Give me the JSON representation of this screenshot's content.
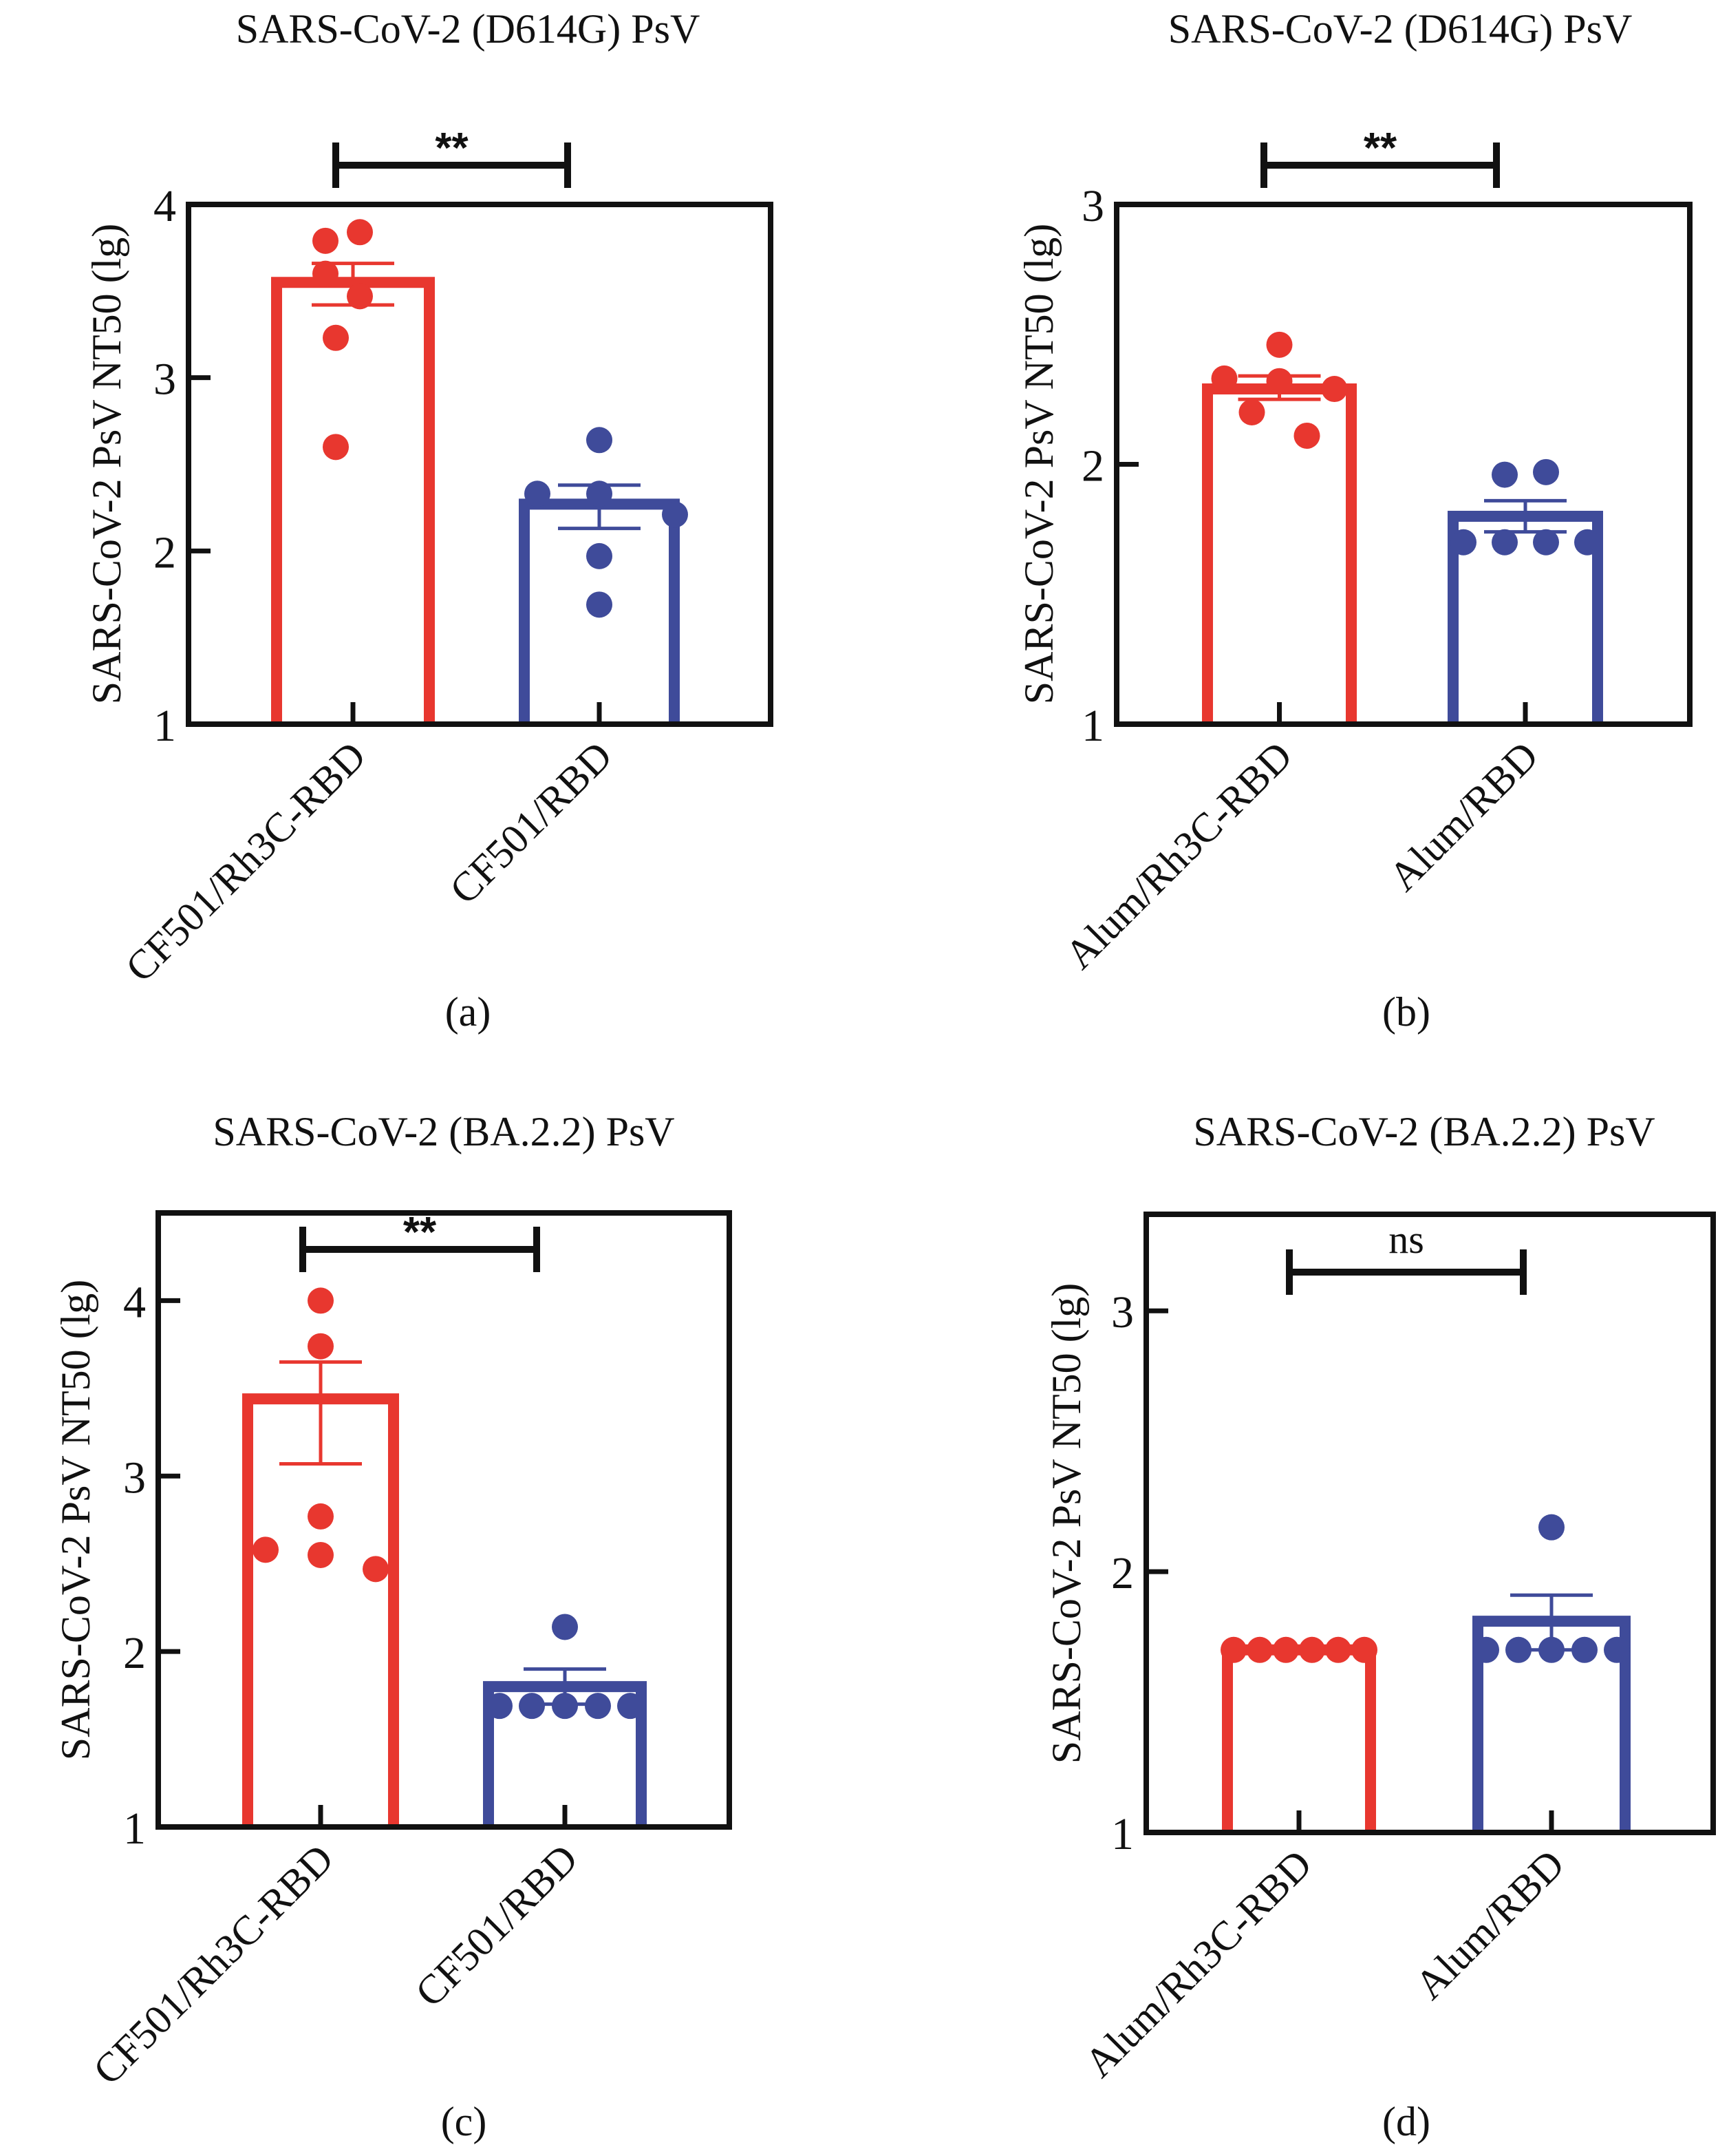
{
  "colors": {
    "group1": "#E8372F",
    "group2": "#3F4B9A",
    "axis": "#111111"
  },
  "chart_data": [
    {
      "id": "a",
      "type": "bar",
      "caption": "(a)",
      "title": "SARS-CoV-2 (D614G) PsV",
      "xlabel": "",
      "ylabel": "SARS-CoV-2 PsV NT50 (lg)",
      "ylim": [
        1,
        4
      ],
      "yticks": [
        1,
        2,
        3,
        4
      ],
      "ytick_labels": [
        "1",
        "2",
        "3",
        "4"
      ],
      "grid": false,
      "categories": [
        "CF501/Rh3C-RBD",
        "CF501/RBD"
      ],
      "series": [
        {
          "name": "CF501/Rh3C-RBD",
          "color_key": "group1",
          "mean": 3.55,
          "sem_upper": 3.66,
          "sem_lower": 3.42,
          "points": [
            3.79,
            3.84,
            3.6,
            3.47,
            3.23,
            2.6
          ]
        },
        {
          "name": "CF501/RBD",
          "color_key": "group2",
          "mean": 2.27,
          "sem_upper": 2.38,
          "sem_lower": 2.13,
          "points": [
            2.33,
            2.64,
            2.33,
            2.21,
            1.97,
            1.69
          ]
        }
      ],
      "significance": {
        "label": "**",
        "between": [
          "CF501/Rh3C-RBD",
          "CF501/RBD"
        ]
      }
    },
    {
      "id": "b",
      "type": "bar",
      "caption": "(b)",
      "title": "SARS-CoV-2 (D614G) PsV",
      "xlabel": "",
      "ylabel": "SARS-CoV-2 PsV NT50 (lg)",
      "ylim": [
        1,
        3
      ],
      "yticks": [
        1,
        2,
        3
      ],
      "ytick_labels": [
        "1",
        "2",
        "3"
      ],
      "grid": false,
      "categories": [
        "Alum/Rh3C-RBD",
        "Alum/RBD"
      ],
      "series": [
        {
          "name": "Alum/Rh3C-RBD",
          "color_key": "group1",
          "mean": 2.29,
          "sem_upper": 2.34,
          "sem_lower": 2.25,
          "points": [
            2.33,
            2.46,
            2.32,
            2.29,
            2.2,
            2.11
          ]
        },
        {
          "name": "Alum/RBD",
          "color_key": "group2",
          "mean": 1.8,
          "sem_upper": 1.86,
          "sem_lower": 1.74,
          "points": [
            1.7,
            1.96,
            1.7,
            1.97,
            1.7,
            1.7
          ]
        }
      ],
      "significance": {
        "label": "**",
        "between": [
          "Alum/Rh3C-RBD",
          "Alum/RBD"
        ]
      }
    },
    {
      "id": "c",
      "type": "bar",
      "caption": "(c)",
      "title": "SARS-CoV-2 (BA.2.2) PsV",
      "xlabel": "",
      "ylabel": "SARS-CoV-2 PsV NT50 (lg)",
      "ylim": [
        1,
        4.5
      ],
      "yticks": [
        1,
        2,
        3,
        4
      ],
      "ytick_labels": [
        "1",
        "2",
        "3",
        "4"
      ],
      "grid": false,
      "categories": [
        "CF501/Rh3C-RBD",
        "CF501/RBD"
      ],
      "series": [
        {
          "name": "CF501/Rh3C-RBD",
          "color_key": "group1",
          "mean": 3.44,
          "sem_upper": 3.65,
          "sem_lower": 3.07,
          "points": [
            4.0,
            3.74,
            2.77,
            2.58,
            2.55,
            2.47
          ]
        },
        {
          "name": "CF501/RBD",
          "color_key": "group2",
          "mean": 1.8,
          "sem_upper": 1.9,
          "sem_lower": 1.7,
          "points": [
            1.69,
            1.69,
            2.14,
            1.69,
            1.69,
            1.69
          ]
        }
      ],
      "significance": {
        "label": "**",
        "between": [
          "CF501/Rh3C-RBD",
          "CF501/RBD"
        ]
      }
    },
    {
      "id": "d",
      "type": "bar",
      "caption": "(d)",
      "title": "SARS-CoV-2 (BA.2.2) PsV",
      "xlabel": "",
      "ylabel": "SARS-CoV-2 PsV NT50 (lg)",
      "ylim": [
        1,
        3.37
      ],
      "yticks": [
        1,
        2,
        3
      ],
      "ytick_labels": [
        "1",
        "2",
        "3"
      ],
      "grid": false,
      "categories": [
        "Alum/Rh3C-RBD",
        "Alum/RBD"
      ],
      "series": [
        {
          "name": "Alum/Rh3C-RBD",
          "color_key": "group1",
          "mean": 1.7,
          "sem_upper": 1.7,
          "sem_lower": 1.7,
          "points": [
            1.7,
            1.7,
            1.7,
            1.7,
            1.7,
            1.7
          ]
        },
        {
          "name": "Alum/RBD",
          "color_key": "group2",
          "mean": 1.81,
          "sem_upper": 1.91,
          "sem_lower": 1.7,
          "points": [
            1.7,
            1.7,
            2.17,
            1.7,
            1.7,
            1.7
          ]
        }
      ],
      "significance": {
        "label": "ns",
        "between": [
          "Alum/Rh3C-RBD",
          "Alum/RBD"
        ]
      }
    }
  ]
}
